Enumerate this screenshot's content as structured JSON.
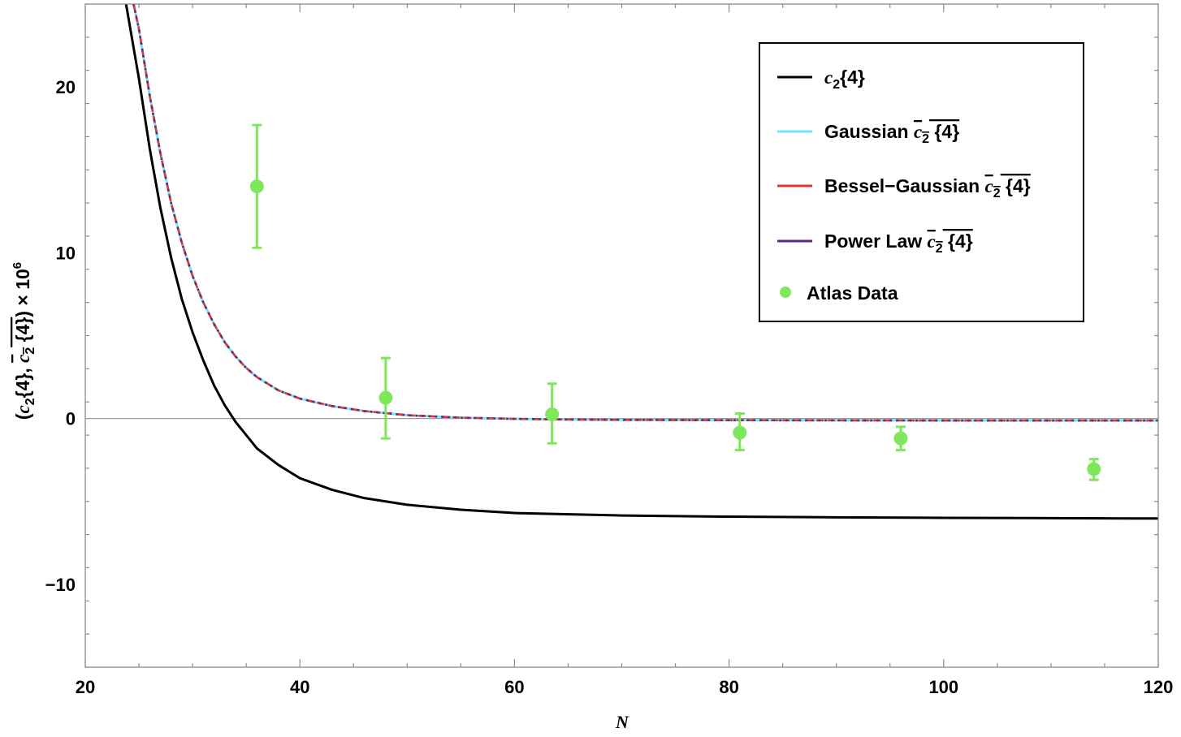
{
  "chart_data": {
    "type": "line",
    "xlabel": "N",
    "ylabel_parts": [
      "(",
      "c",
      "2",
      "{4}, ",
      "c",
      "2",
      " {4}",
      ") × 10",
      "6"
    ],
    "xlim": [
      20,
      120
    ],
    "ylim": [
      -15,
      25
    ],
    "x_ticks": [
      20,
      40,
      60,
      80,
      100,
      120
    ],
    "x_tick_labels": [
      "20",
      "40",
      "60",
      "80",
      "100",
      "120"
    ],
    "y_ticks": [
      -10,
      0,
      10,
      20
    ],
    "y_tick_labels": [
      "−10",
      "0",
      "10",
      "20"
    ],
    "grid": false,
    "legend_position": "top-right",
    "series": [
      {
        "name_parts": [
          "",
          "c",
          "2",
          "{4}"
        ],
        "overline": false,
        "color": "#000000",
        "style": "solid",
        "x": [
          23.8,
          25,
          26,
          27,
          28,
          29,
          30,
          31,
          32,
          33,
          34,
          35,
          36,
          38,
          40,
          43,
          46,
          50,
          55,
          60,
          70,
          80,
          90,
          100,
          110,
          120
        ],
        "y": [
          25,
          20.5,
          16.3,
          12.7,
          9.7,
          7.2,
          5.2,
          3.5,
          2.0,
          0.8,
          -0.2,
          -1.0,
          -1.8,
          -2.8,
          -3.6,
          -4.3,
          -4.8,
          -5.2,
          -5.5,
          -5.7,
          -5.85,
          -5.92,
          -5.96,
          -5.99,
          -6.01,
          -6.03
        ]
      },
      {
        "name_parts": [
          "Gaussian ",
          "c",
          "2",
          " {4}"
        ],
        "overline": true,
        "color": "#6fe8ff",
        "style": "solid",
        "x": [
          24.5,
          25,
          26,
          27,
          28,
          29,
          30,
          31,
          32,
          33,
          34,
          35,
          36,
          38,
          40,
          43,
          46,
          50,
          55,
          60,
          65,
          70,
          80,
          90,
          100,
          110,
          120
        ],
        "y": [
          25,
          23.5,
          19.5,
          16.0,
          13.0,
          10.6,
          8.6,
          7.0,
          5.7,
          4.6,
          3.75,
          3.05,
          2.5,
          1.7,
          1.2,
          0.75,
          0.45,
          0.2,
          0.05,
          -0.02,
          -0.06,
          -0.08,
          -0.1,
          -0.11,
          -0.12,
          -0.12,
          -0.12
        ]
      },
      {
        "name_parts": [
          "Bessel−Gaussian ",
          "c",
          "2",
          " {4}"
        ],
        "overline": true,
        "color": "#e8362c",
        "style": "dashed",
        "x": [
          24.5,
          25,
          26,
          27,
          28,
          29,
          30,
          31,
          32,
          33,
          34,
          35,
          36,
          38,
          40,
          43,
          46,
          50,
          55,
          60,
          65,
          70,
          80,
          90,
          100,
          110,
          120
        ],
        "y": [
          25,
          23.5,
          19.5,
          16.0,
          13.0,
          10.6,
          8.6,
          7.0,
          5.7,
          4.6,
          3.75,
          3.05,
          2.5,
          1.7,
          1.2,
          0.75,
          0.45,
          0.2,
          0.05,
          -0.02,
          -0.06,
          -0.08,
          -0.1,
          -0.11,
          -0.12,
          -0.12,
          -0.12
        ]
      },
      {
        "name_parts": [
          "Power Law ",
          "c",
          "2",
          " {4}"
        ],
        "overline": true,
        "color": "#5b2a86",
        "style": "dotted",
        "x": [
          24.5,
          25,
          26,
          27,
          28,
          29,
          30,
          31,
          32,
          33,
          34,
          35,
          36,
          38,
          40,
          43,
          46,
          50,
          55,
          60,
          65,
          70,
          80,
          90,
          100,
          110,
          120
        ],
        "y": [
          25,
          23.5,
          19.5,
          16.0,
          13.0,
          10.6,
          8.6,
          7.0,
          5.7,
          4.6,
          3.75,
          3.05,
          2.5,
          1.7,
          1.2,
          0.75,
          0.45,
          0.2,
          0.05,
          -0.02,
          -0.06,
          -0.08,
          -0.1,
          -0.11,
          -0.12,
          -0.12,
          -0.12
        ]
      }
    ],
    "points": {
      "name": "Atlas Data",
      "color": "#7fe85a",
      "x": [
        36,
        48,
        63.5,
        81,
        96,
        114
      ],
      "y": [
        14.0,
        1.25,
        0.25,
        -0.85,
        -1.2,
        -3.05
      ],
      "err_low": [
        3.7,
        2.45,
        1.75,
        1.05,
        0.7,
        0.65
      ],
      "err_high": [
        3.7,
        2.4,
        1.85,
        1.15,
        0.7,
        0.6
      ]
    }
  }
}
